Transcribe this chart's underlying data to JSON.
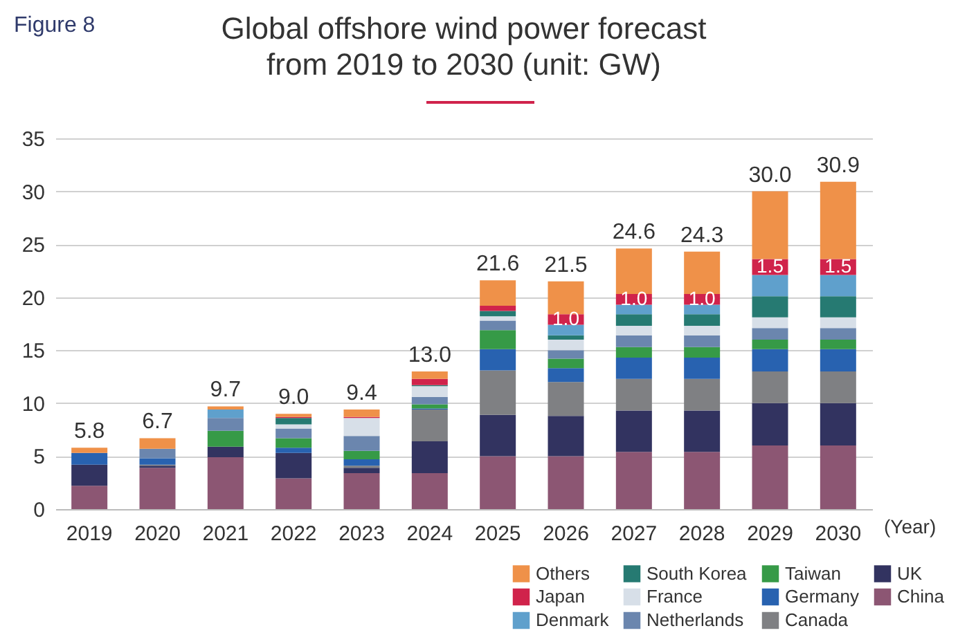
{
  "chart_data": {
    "type": "bar",
    "title": "Global offshore wind power forecast\nfrom 2019 to 2030 (unit: GW)",
    "annotations": [
      "Figure 8"
    ],
    "xlabel": "(Year)",
    "categories": [
      "2019",
      "2020",
      "2021",
      "2022",
      "2023",
      "2024",
      "2025",
      "2026",
      "2027",
      "2028",
      "2029",
      "2030"
    ],
    "stacked": true,
    "ylim": [
      0,
      35
    ],
    "yticks": [
      0,
      5,
      10,
      15,
      20,
      25,
      30,
      35
    ],
    "grid": "y",
    "legend": "bottom right",
    "totals": [
      "5.8",
      "6.7",
      "9.7",
      "9.0",
      "9.4",
      "13.0",
      "21.6",
      "21.5",
      "24.6",
      "24.3",
      "30.0",
      "30.9"
    ],
    "series": [
      {
        "name": "China",
        "color": "#8c5673",
        "values": [
          2.2,
          3.9,
          4.9,
          2.9,
          3.4,
          3.4,
          5.0,
          5.0,
          5.4,
          5.4,
          6.0,
          6.0
        ]
      },
      {
        "name": "UK",
        "color": "#323360",
        "values": [
          2.0,
          0.2,
          1.0,
          2.4,
          0.5,
          3.0,
          3.9,
          3.8,
          3.9,
          3.9,
          4.0,
          4.0
        ]
      },
      {
        "name": "Canada",
        "color": "#7f8083",
        "values": [
          null,
          0.1,
          null,
          null,
          0.2,
          3.0,
          4.2,
          3.2,
          3.0,
          3.0,
          3.0,
          3.0
        ]
      },
      {
        "name": "Germany",
        "color": "#2862b0",
        "values": [
          1.1,
          0.6,
          null,
          0.5,
          0.6,
          0.1,
          2.0,
          1.3,
          2.0,
          2.0,
          2.1,
          2.1
        ]
      },
      {
        "name": "Taiwan",
        "color": "#369a47",
        "values": [
          null,
          null,
          1.5,
          0.9,
          0.8,
          0.4,
          1.8,
          0.9,
          1.0,
          1.0,
          0.9,
          0.9
        ]
      },
      {
        "name": "Netherlands",
        "color": "#6b86ae",
        "values": [
          null,
          0.9,
          1.2,
          0.9,
          1.4,
          0.7,
          0.9,
          0.8,
          1.1,
          1.1,
          1.1,
          1.1
        ]
      },
      {
        "name": "France",
        "color": "#d7dfe8",
        "values": [
          null,
          null,
          null,
          0.4,
          1.7,
          1.0,
          0.4,
          1.0,
          0.9,
          0.9,
          1.0,
          1.0
        ]
      },
      {
        "name": "South Korea",
        "color": "#267a72",
        "values": [
          null,
          null,
          null,
          0.6,
          null,
          0.1,
          0.5,
          0.4,
          1.1,
          1.1,
          2.0,
          2.0
        ]
      },
      {
        "name": "Denmark",
        "color": "#5fa0cc",
        "values": [
          null,
          null,
          0.8,
          null,
          null,
          null,
          null,
          1.0,
          0.9,
          0.9,
          2.0,
          2.0
        ]
      },
      {
        "name": "Japan",
        "color": "#d0234b",
        "values": [
          null,
          null,
          null,
          0.1,
          0.1,
          0.6,
          0.5,
          1.0,
          1.0,
          1.0,
          1.5,
          1.5
        ],
        "value_labels": [
          null,
          null,
          null,
          null,
          null,
          null,
          null,
          "1.0",
          "1.0",
          "1.0",
          "1.5",
          "1.5"
        ]
      },
      {
        "name": "Others",
        "color": "#ef9149",
        "values": [
          0.5,
          1.0,
          0.3,
          0.3,
          0.7,
          0.7,
          2.4,
          3.1,
          4.3,
          4.0,
          6.4,
          7.3
        ]
      }
    ]
  }
}
